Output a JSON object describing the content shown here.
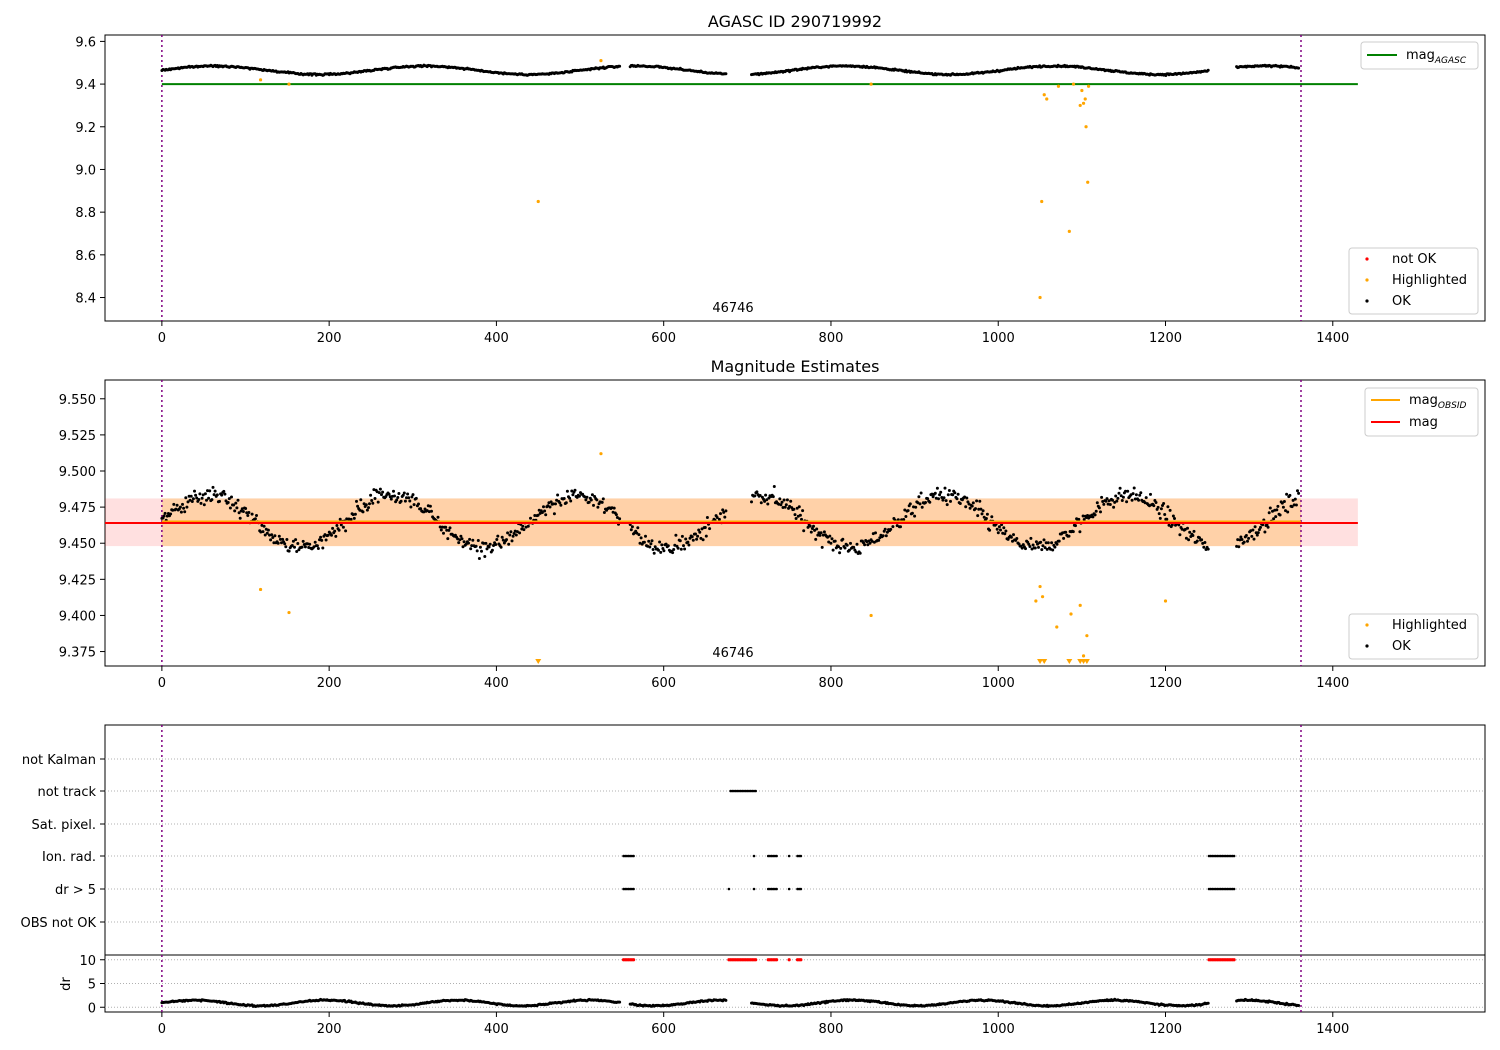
{
  "chart_data": [
    {
      "type": "scatter",
      "title": "AGASC ID 290719992",
      "annotation": "46746",
      "xlim": [
        -68,
        1582
      ],
      "ylim": [
        8.29,
        9.63
      ],
      "xticks": [
        0,
        200,
        400,
        600,
        800,
        1000,
        1200,
        1400
      ],
      "yticks": [
        "8.4",
        "8.6",
        "8.8",
        "9.0",
        "9.2",
        "9.4",
        "9.6"
      ],
      "vlines": [
        0,
        1362
      ],
      "hline": {
        "name": "mag_AGASC",
        "y": 9.4,
        "x_range": [
          0,
          1430
        ]
      },
      "legend_top": [
        {
          "label": "mag",
          "sub": "AGASC",
          "color": "#008000"
        }
      ],
      "legend_bottom": [
        {
          "label": "not OK",
          "color": "#ff0000"
        },
        {
          "label": "Highlighted",
          "color": "#ffa500"
        },
        {
          "label": "OK",
          "color": "#000000"
        }
      ],
      "highlighted_points": [
        [
          118,
          9.42
        ],
        [
          152,
          9.4
        ],
        [
          450,
          8.85
        ],
        [
          525,
          9.51
        ],
        [
          848,
          9.4
        ],
        [
          1050,
          8.4
        ],
        [
          1052,
          8.85
        ],
        [
          1055,
          9.35
        ],
        [
          1058,
          9.33
        ],
        [
          1072,
          9.39
        ],
        [
          1085,
          8.71
        ],
        [
          1090,
          9.4
        ],
        [
          1098,
          9.3
        ],
        [
          1100,
          9.37
        ],
        [
          1102,
          9.31
        ],
        [
          1104,
          9.33
        ],
        [
          1105,
          9.2
        ],
        [
          1107,
          8.94
        ],
        [
          1108,
          9.39
        ]
      ],
      "ok_baseline": 9.465,
      "ok_segments": [
        [
          0,
          548
        ],
        [
          560,
          675
        ],
        [
          705,
          1252
        ],
        [
          1285,
          1360
        ]
      ]
    },
    {
      "type": "scatter",
      "title": "Magnitude Estimates",
      "annotation": "46746",
      "xlim": [
        -68,
        1582
      ],
      "ylim": [
        9.365,
        9.563
      ],
      "xticks": [
        0,
        200,
        400,
        600,
        800,
        1000,
        1200,
        1400
      ],
      "yticks": [
        "9.375",
        "9.400",
        "9.425",
        "9.450",
        "9.475",
        "9.500",
        "9.525",
        "9.550"
      ],
      "vlines": [
        0,
        1362
      ],
      "lines": [
        {
          "name": "mag_OBSID",
          "y": 9.465,
          "x_range": [
            0,
            1362
          ],
          "color": "#ffa500"
        },
        {
          "name": "mag",
          "y": 9.464,
          "x_range": [
            -68,
            1430
          ],
          "color": "#ff0000"
        }
      ],
      "band_obsid": [
        9.448,
        9.481
      ],
      "band_mag": [
        9.448,
        9.481
      ],
      "legend_top": [
        {
          "label": "mag",
          "sub": "OBSID",
          "color": "#ffa500"
        },
        {
          "label": "mag",
          "sub": "",
          "color": "#ff0000"
        }
      ],
      "legend_bottom": [
        {
          "label": "Highlighted",
          "color": "#ffa500"
        },
        {
          "label": "OK",
          "color": "#000000"
        }
      ],
      "highlighted_points": [
        [
          118,
          9.418
        ],
        [
          152,
          9.402
        ],
        [
          525,
          9.512
        ],
        [
          848,
          9.4
        ],
        [
          1045,
          9.41
        ],
        [
          1050,
          9.42
        ],
        [
          1053,
          9.413
        ],
        [
          1070,
          9.392
        ],
        [
          1087,
          9.401
        ],
        [
          1098,
          9.407
        ],
        [
          1102,
          9.372
        ],
        [
          1106,
          9.386
        ],
        [
          1200,
          9.41
        ]
      ],
      "offscale_below_x": [
        450,
        1050,
        1055,
        1085,
        1098,
        1102,
        1106
      ],
      "ok_segments": [
        [
          0,
          548
        ],
        [
          560,
          675
        ],
        [
          705,
          1252
        ],
        [
          1285,
          1360
        ]
      ]
    },
    {
      "type": "scatter",
      "title": "",
      "xlim": [
        -68,
        1582
      ],
      "xticks": [
        0,
        200,
        400,
        600,
        800,
        1000,
        1200,
        1400
      ],
      "vlines": [
        0,
        1362
      ],
      "flag_rows": [
        "not Kalman",
        "not track",
        "Sat. pixel.",
        "Ion. rad.",
        "dr > 5",
        "OBS not OK"
      ],
      "flag_points": {
        "not track": [
          [
            680,
            710
          ]
        ],
        "Ion. rad.": [
          [
            552,
            564
          ],
          [
            708,
            708
          ],
          [
            725,
            735
          ],
          [
            750,
            750
          ],
          [
            760,
            765
          ],
          [
            1252,
            1282
          ]
        ],
        "dr > 5": [
          [
            552,
            564
          ],
          [
            678,
            678
          ],
          [
            708,
            708
          ],
          [
            725,
            735
          ],
          [
            750,
            750
          ],
          [
            760,
            765
          ],
          [
            1252,
            1282
          ]
        ]
      },
      "dr_ylabel": "dr",
      "dr_yticks": [
        "0",
        "5",
        "10"
      ],
      "dr_red_segments": [
        [
          552,
          564
        ],
        [
          678,
          710
        ],
        [
          725,
          735
        ],
        [
          750,
          750
        ],
        [
          760,
          765
        ],
        [
          1252,
          1282
        ]
      ],
      "dr_ok_segments": [
        [
          0,
          548
        ],
        [
          560,
          675
        ],
        [
          705,
          1252
        ],
        [
          1285,
          1360
        ]
      ]
    }
  ]
}
